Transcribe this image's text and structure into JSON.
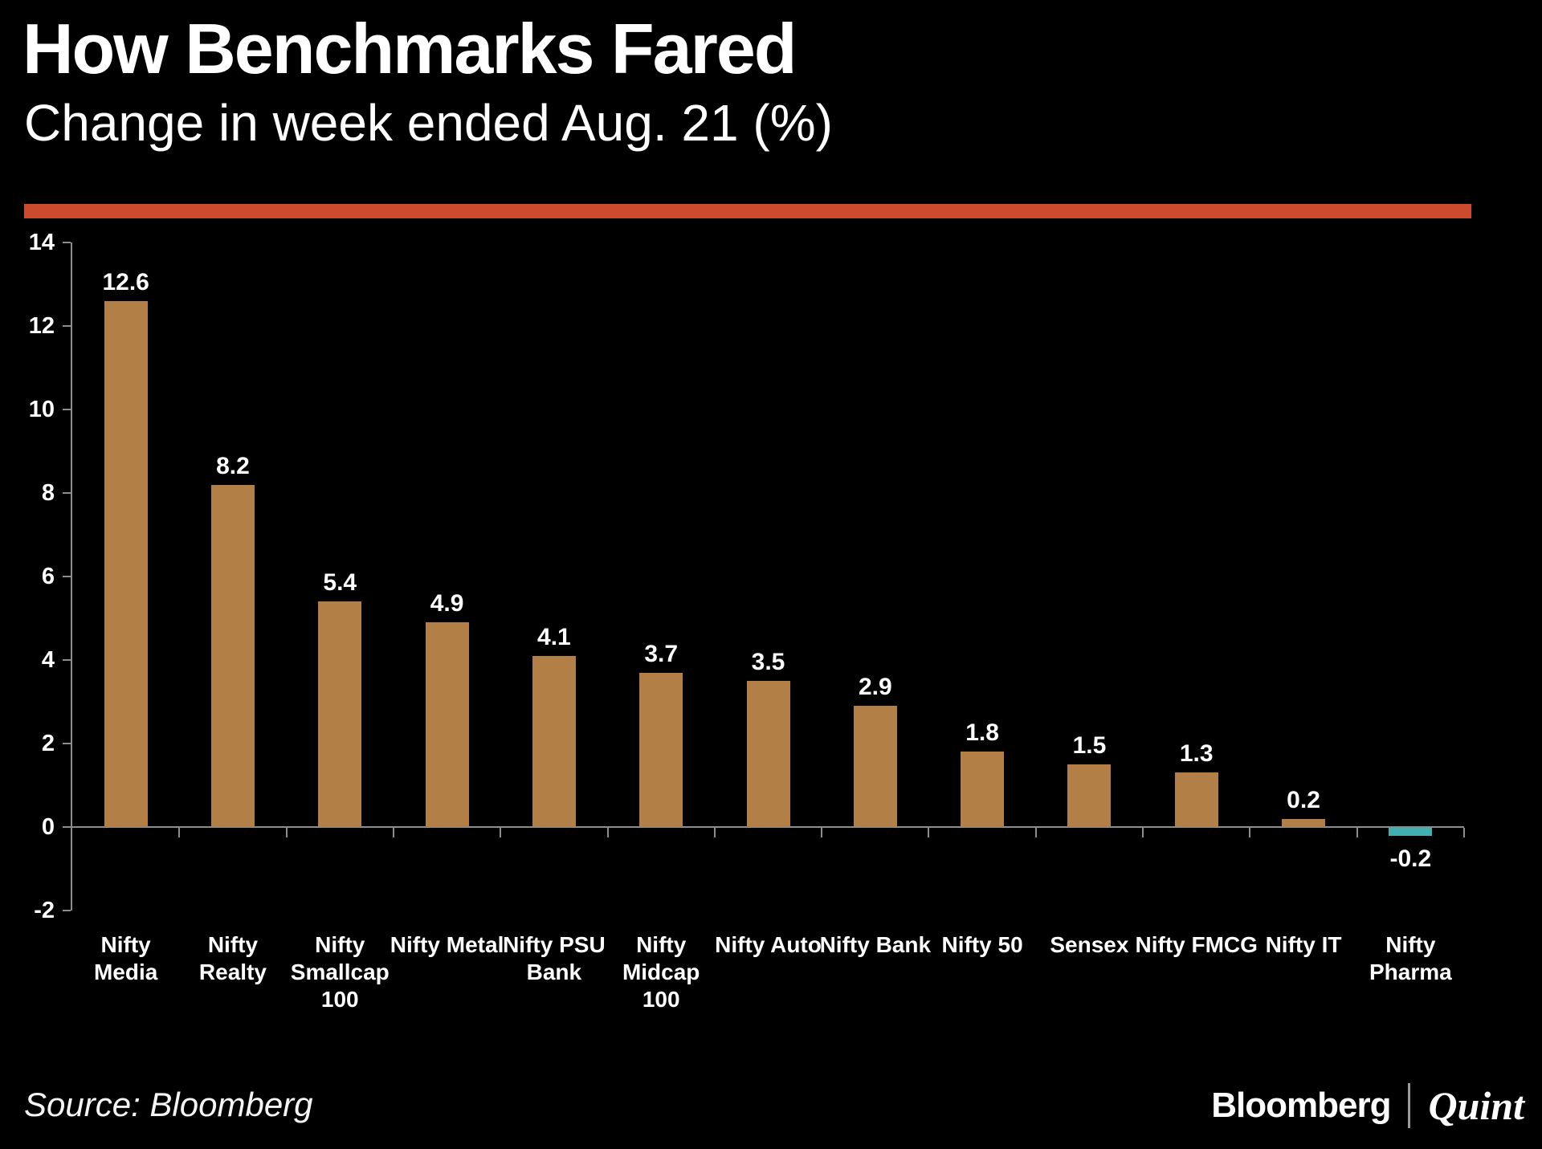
{
  "header": {
    "title": "How Benchmarks Fared",
    "subtitle": "Change in week ended Aug. 21 (%)"
  },
  "footer": {
    "source": "Source: Bloomberg",
    "brand_left": "Bloomberg",
    "brand_right": "Quint"
  },
  "colors": {
    "background": "#000000",
    "accent_rule": "#cc4a2e",
    "bar_positive": "#b28046",
    "bar_negative": "#41b0b1",
    "axis": "#8c8c8c",
    "text": "#ffffff"
  },
  "chart_data": {
    "type": "bar",
    "title": "How Benchmarks Fared",
    "subtitle": "Change in week ended Aug. 21 (%)",
    "categories": [
      "Nifty\nMedia",
      "Nifty\nRealty",
      "Nifty\nSmallcap\n100",
      "Nifty Metal",
      "Nifty PSU\nBank",
      "Nifty\nMidcap\n100",
      "Nifty Auto",
      "Nifty Bank",
      "Nifty 50",
      "Sensex",
      "Nifty FMCG",
      "Nifty IT",
      "Nifty\nPharma"
    ],
    "values": [
      12.6,
      8.2,
      5.4,
      4.9,
      4.1,
      3.7,
      3.5,
      2.9,
      1.8,
      1.5,
      1.3,
      0.2,
      -0.2
    ],
    "value_labels": [
      "12.6",
      "8.2",
      "5.4",
      "4.9",
      "4.1",
      "3.7",
      "3.5",
      "2.9",
      "1.8",
      "1.5",
      "1.3",
      "0.2",
      "-0.2"
    ],
    "xlabel": "",
    "ylabel": "",
    "ylim": [
      -2,
      14
    ],
    "yticks": [
      14,
      12,
      10,
      8,
      6,
      4,
      2,
      0,
      -2
    ],
    "grid": false,
    "legend": false,
    "bar_color_positive": "#b28046",
    "bar_color_negative": "#41b0b1"
  }
}
